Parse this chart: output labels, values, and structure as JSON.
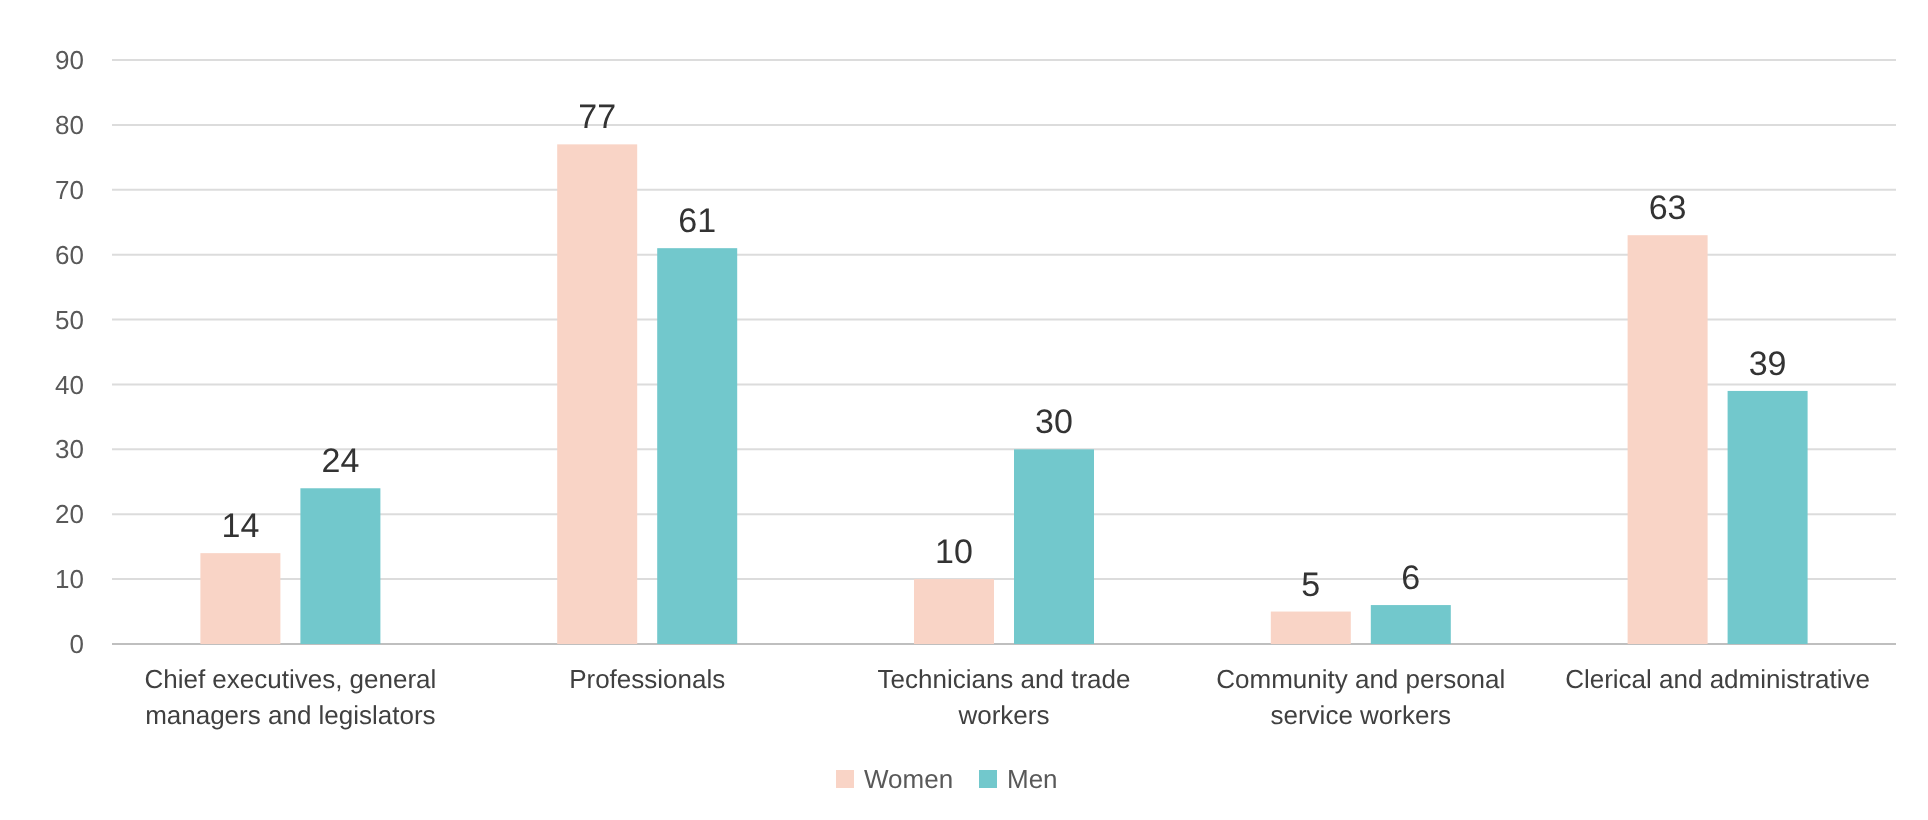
{
  "chart_data": {
    "type": "bar",
    "categories": [
      "Chief executives, general managers and legislators",
      "Professionals",
      "Technicians and trade workers",
      "Community and personal service workers",
      "Clerical and administrative"
    ],
    "series": [
      {
        "name": "Women",
        "color": "#f9d4c6",
        "values": [
          14,
          77,
          10,
          5,
          63
        ]
      },
      {
        "name": "Men",
        "color": "#72c8cc",
        "values": [
          24,
          61,
          30,
          6,
          39
        ]
      }
    ],
    "ylim": [
      0,
      90
    ],
    "yticks": [
      0,
      10,
      20,
      30,
      40,
      50,
      60,
      70,
      80,
      90
    ],
    "grid": "y",
    "legend": "bottom",
    "data_labels": true
  }
}
